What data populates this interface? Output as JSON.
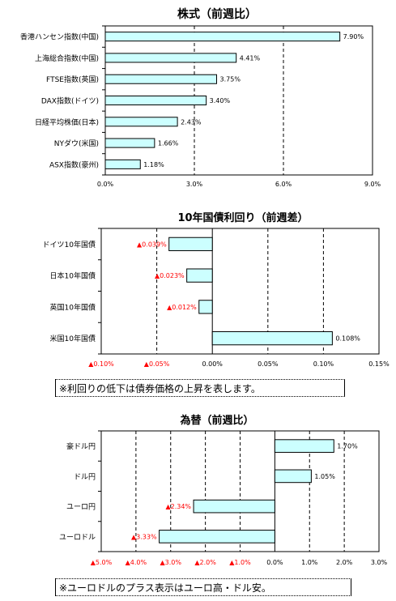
{
  "chart_data": [
    {
      "type": "bar",
      "orientation": "horizontal",
      "title": "株式（前週比）",
      "categories": [
        "香港ハンセン指数(中国)",
        "上海総合指数(中国)",
        "FTSE指数(英国)",
        "DAX指数(ドイツ)",
        "日経平均株価(日本)",
        "NYダウ(米国)",
        "ASX指数(豪州)"
      ],
      "values": [
        7.9,
        4.41,
        3.75,
        3.4,
        2.43,
        1.66,
        1.18
      ],
      "data_labels": [
        "7.90%",
        "4.41%",
        "3.75%",
        "3.40%",
        "2.43%",
        "1.66%",
        "1.18%"
      ],
      "xlim": [
        0,
        9
      ],
      "xticks": [
        0,
        3,
        6,
        9
      ],
      "xtick_labels": [
        "0.0%",
        "3.0%",
        "6.0%",
        "9.0%"
      ],
      "grid": true,
      "bar_color": "#ccffff"
    },
    {
      "type": "bar",
      "orientation": "horizontal",
      "title": "10年国債利回り（前週差）",
      "categories": [
        "ドイツ10年国債",
        "日本10年国債",
        "英国10年国債",
        "米国10年国債"
      ],
      "values": [
        -0.039,
        -0.023,
        -0.012,
        0.108
      ],
      "data_labels": [
        "▲0.039%",
        "▲0.023%",
        "▲0.012%",
        "0.108%"
      ],
      "xlim": [
        -0.1,
        0.15
      ],
      "xticks": [
        -0.1,
        -0.05,
        0,
        0.05,
        0.1,
        0.15
      ],
      "xtick_labels": [
        "▲0.10%",
        "▲0.05%",
        "0.00%",
        "0.05%",
        "0.10%",
        "0.15%"
      ],
      "negative_label_color": "#ff0000",
      "grid": true,
      "bar_color": "#ccffff",
      "note": "※利回りの低下は債券価格の上昇を表します。"
    },
    {
      "type": "bar",
      "orientation": "horizontal",
      "title": "為替（前週比）",
      "categories": [
        "豪ドル円",
        "ドル円",
        "ユーロ円",
        "ユーロドル"
      ],
      "values": [
        1.7,
        1.05,
        -2.34,
        -3.33
      ],
      "data_labels": [
        "1.70%",
        "1.05%",
        "▲2.34%",
        "▲3.33%"
      ],
      "xlim": [
        -5,
        3
      ],
      "xticks": [
        -5,
        -4,
        -3,
        -2,
        -1,
        0,
        1,
        2,
        3
      ],
      "xtick_labels": [
        "▲5.0%",
        "▲4.0%",
        "▲3.0%",
        "▲2.0%",
        "▲1.0%",
        "0.0%",
        "1.0%",
        "2.0%",
        "3.0%"
      ],
      "negative_label_color": "#ff0000",
      "grid": true,
      "bar_color": "#ccffff",
      "note": "※ユーロドルのプラス表示はユーロ高・ドル安。"
    }
  ]
}
